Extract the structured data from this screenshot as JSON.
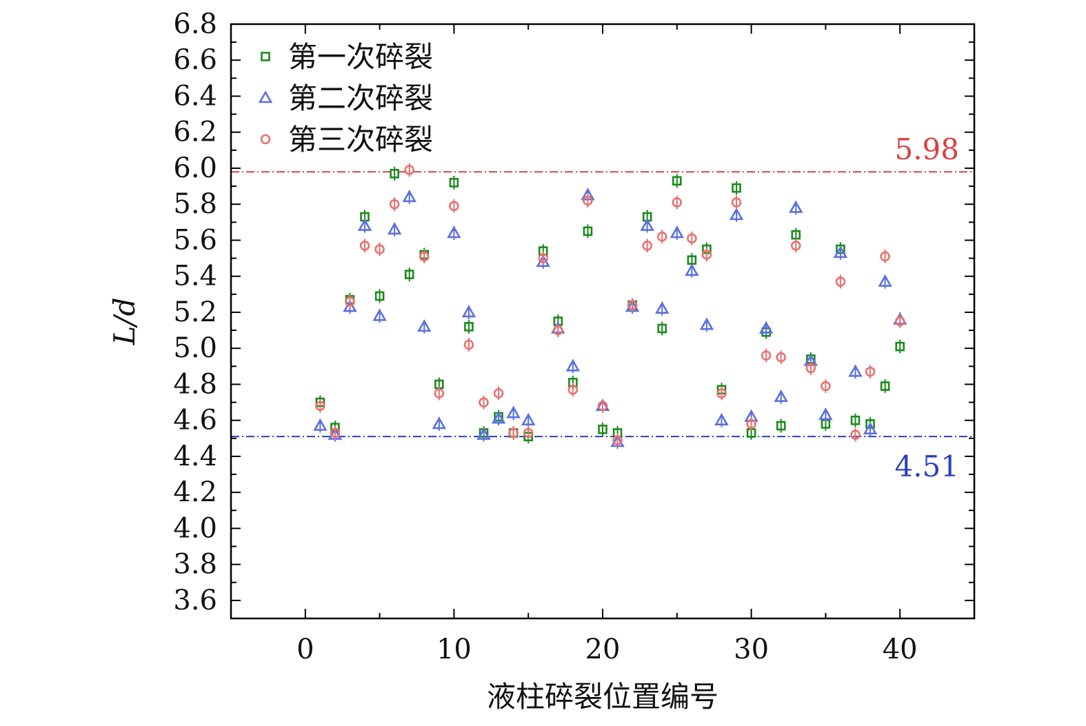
{
  "chart_data": {
    "type": "scatter",
    "xlabel": "液柱碎裂位置编号",
    "ylabel": "L/d",
    "xlim": [
      -5,
      45
    ],
    "ylim": [
      3.5,
      6.8
    ],
    "xticks": [
      0,
      10,
      20,
      30,
      40
    ],
    "yticks": [
      3.6,
      3.8,
      4.0,
      4.2,
      4.4,
      4.6,
      4.8,
      5.0,
      5.2,
      5.4,
      5.6,
      5.8,
      6.0,
      6.2,
      6.4,
      6.6,
      6.8
    ],
    "grid": false,
    "legend_position": "top-left",
    "reference_lines": [
      {
        "value": 5.98,
        "label": "5.98",
        "color": "#d94040",
        "style": "dash-dot"
      },
      {
        "value": 4.51,
        "label": "4.51",
        "color": "#2a3fbf",
        "style": "dash-dot"
      }
    ],
    "series": [
      {
        "name": "第一次碎裂",
        "marker": "square",
        "color": "#1a8a1a",
        "points": [
          [
            1,
            4.7
          ],
          [
            2,
            4.56
          ],
          [
            3,
            5.27
          ],
          [
            4,
            5.73
          ],
          [
            5,
            5.29
          ],
          [
            6,
            5.97
          ],
          [
            7,
            5.41
          ],
          [
            8,
            5.52
          ],
          [
            9,
            4.8
          ],
          [
            10,
            5.92
          ],
          [
            11,
            5.12
          ],
          [
            12,
            4.53
          ],
          [
            13,
            4.62
          ],
          [
            14,
            4.53
          ],
          [
            15,
            4.51
          ],
          [
            16,
            5.54
          ],
          [
            17,
            5.15
          ],
          [
            18,
            4.81
          ],
          [
            19,
            5.65
          ],
          [
            20,
            4.55
          ],
          [
            21,
            4.53
          ],
          [
            22,
            5.24
          ],
          [
            23,
            5.73
          ],
          [
            24,
            5.11
          ],
          [
            25,
            5.93
          ],
          [
            26,
            5.49
          ],
          [
            27,
            5.55
          ],
          [
            28,
            4.77
          ],
          [
            29,
            5.89
          ],
          [
            30,
            4.53
          ],
          [
            31,
            5.09
          ],
          [
            32,
            4.57
          ],
          [
            33,
            5.63
          ],
          [
            34,
            4.94
          ],
          [
            35,
            4.58
          ],
          [
            36,
            5.55
          ],
          [
            37,
            4.6
          ],
          [
            38,
            4.58
          ],
          [
            39,
            4.79
          ],
          [
            40,
            5.01
          ]
        ]
      },
      {
        "name": "第二次碎裂",
        "marker": "triangle",
        "color": "#5a6fe0",
        "points": [
          [
            1,
            4.57
          ],
          [
            2,
            4.52
          ],
          [
            3,
            5.23
          ],
          [
            4,
            5.68
          ],
          [
            5,
            5.18
          ],
          [
            6,
            5.66
          ],
          [
            7,
            5.84
          ],
          [
            8,
            5.12
          ],
          [
            9,
            4.58
          ],
          [
            10,
            5.64
          ],
          [
            11,
            5.2
          ],
          [
            12,
            4.52
          ],
          [
            13,
            4.61
          ],
          [
            14,
            4.64
          ],
          [
            15,
            4.6
          ],
          [
            16,
            5.48
          ],
          [
            17,
            5.11
          ],
          [
            18,
            4.9
          ],
          [
            19,
            5.85
          ],
          [
            20,
            4.68
          ],
          [
            21,
            4.48
          ],
          [
            22,
            5.23
          ],
          [
            23,
            5.68
          ],
          [
            24,
            5.22
          ],
          [
            25,
            5.64
          ],
          [
            26,
            5.43
          ],
          [
            27,
            5.13
          ],
          [
            28,
            4.6
          ],
          [
            29,
            5.74
          ],
          [
            30,
            4.62
          ],
          [
            31,
            5.11
          ],
          [
            32,
            4.73
          ],
          [
            33,
            5.78
          ],
          [
            34,
            4.93
          ],
          [
            35,
            4.63
          ],
          [
            36,
            5.53
          ],
          [
            37,
            4.87
          ],
          [
            38,
            4.55
          ],
          [
            39,
            5.37
          ],
          [
            40,
            5.16
          ]
        ]
      },
      {
        "name": "第三次碎裂",
        "marker": "circle",
        "color": "#e87070",
        "points": [
          [
            1,
            4.68
          ],
          [
            2,
            4.53
          ],
          [
            3,
            5.26
          ],
          [
            4,
            5.57
          ],
          [
            5,
            5.55
          ],
          [
            6,
            5.8
          ],
          [
            7,
            5.99
          ],
          [
            8,
            5.51
          ],
          [
            9,
            4.75
          ],
          [
            10,
            5.79
          ],
          [
            11,
            5.02
          ],
          [
            12,
            4.7
          ],
          [
            13,
            4.75
          ],
          [
            14,
            4.53
          ],
          [
            15,
            4.53
          ],
          [
            16,
            5.5
          ],
          [
            17,
            5.1
          ],
          [
            18,
            4.77
          ],
          [
            19,
            5.82
          ],
          [
            20,
            4.68
          ],
          [
            21,
            4.49
          ],
          [
            22,
            5.24
          ],
          [
            23,
            5.57
          ],
          [
            24,
            5.62
          ],
          [
            25,
            5.81
          ],
          [
            26,
            5.61
          ],
          [
            27,
            5.52
          ],
          [
            28,
            4.75
          ],
          [
            29,
            5.81
          ],
          [
            30,
            4.58
          ],
          [
            31,
            4.96
          ],
          [
            32,
            4.95
          ],
          [
            33,
            5.57
          ],
          [
            34,
            4.89
          ],
          [
            35,
            4.79
          ],
          [
            36,
            5.37
          ],
          [
            37,
            4.52
          ],
          [
            38,
            4.87
          ],
          [
            39,
            5.51
          ],
          [
            40,
            5.15
          ]
        ]
      }
    ]
  }
}
